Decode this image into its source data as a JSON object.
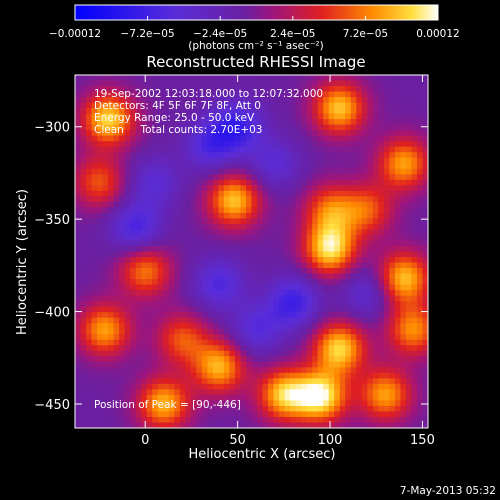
{
  "chart_data": {
    "type": "heatmap",
    "title": "Reconstructed RHESSI Image",
    "xlabel": "Heliocentric X (arcsec)",
    "ylabel": "Heliocentric Y (arcsec)",
    "xlim": [
      -38,
      153
    ],
    "ylim": [
      -463,
      -272
    ],
    "x_ticks": [
      0,
      50,
      100,
      150
    ],
    "x_tick_labels": [
      "0",
      "50",
      "100",
      "150"
    ],
    "y_ticks": [
      -300,
      -350,
      -400,
      -450
    ],
    "y_tick_labels": [
      "−300",
      "−350",
      "−400",
      "−450"
    ],
    "colorbar": {
      "range": [
        -0.00012,
        0.00012
      ],
      "tick_values": [
        -0.00012,
        -7.2e-05,
        -2.4e-05,
        2.4e-05,
        7.2e-05,
        0.00012
      ],
      "tick_labels": [
        "−0.00012",
        "−7.2e−05",
        "−2.4e−05",
        "2.4e−05",
        "7.2e−05",
        "0.00012"
      ],
      "units_line": "(photons cm⁻² s⁻¹ asec⁻²)",
      "colormap": "rhessi-blue-purple-red-yellow-white"
    },
    "annotations": [
      "19-Sep-2002 12:03:18.000 to 12:07:32.000",
      "Detectors: 4F 5F 6F 7F 8F, Att 0",
      "Energy Range: 25.0 - 50.0 keV",
      "Clean     Total counts: 2.70E+03"
    ],
    "peak_label": "Position of Peak = [90,-446]",
    "peak": {
      "x": 90,
      "y": -446
    },
    "bright_sources": [
      {
        "x": -20,
        "y": -296,
        "v": 0.9
      },
      {
        "x": 105,
        "y": -290,
        "v": 0.85
      },
      {
        "x": 140,
        "y": -320,
        "v": 0.75
      },
      {
        "x": 120,
        "y": -345,
        "v": 0.55
      },
      {
        "x": -25,
        "y": -330,
        "v": 0.55
      },
      {
        "x": 48,
        "y": -340,
        "v": 0.85
      },
      {
        "x": 100,
        "y": -345,
        "v": 0.6
      },
      {
        "x": 100,
        "y": -366,
        "v": 0.95
      },
      {
        "x": 0,
        "y": -378,
        "v": 0.65
      },
      {
        "x": 140,
        "y": -382,
        "v": 0.85
      },
      {
        "x": 145,
        "y": -410,
        "v": 0.7
      },
      {
        "x": 20,
        "y": -415,
        "v": 0.55
      },
      {
        "x": -22,
        "y": -410,
        "v": 0.75
      },
      {
        "x": 40,
        "y": -430,
        "v": 0.8
      },
      {
        "x": 10,
        "y": -450,
        "v": 0.8
      },
      {
        "x": 75,
        "y": -445,
        "v": 0.85
      },
      {
        "x": 95,
        "y": -446,
        "v": 1.0
      },
      {
        "x": 105,
        "y": -420,
        "v": 0.9
      },
      {
        "x": 130,
        "y": -445,
        "v": 0.75
      }
    ],
    "dark_sources": [
      {
        "x": 50,
        "y": -300,
        "v": -0.55
      },
      {
        "x": 35,
        "y": -310,
        "v": -0.45
      },
      {
        "x": 70,
        "y": -320,
        "v": -0.35
      },
      {
        "x": -5,
        "y": -355,
        "v": -0.5
      },
      {
        "x": 5,
        "y": -330,
        "v": -0.35
      },
      {
        "x": 80,
        "y": -395,
        "v": -0.55
      },
      {
        "x": 40,
        "y": -385,
        "v": -0.45
      },
      {
        "x": 120,
        "y": -390,
        "v": -0.35
      },
      {
        "x": 60,
        "y": -410,
        "v": -0.4
      }
    ]
  },
  "footer_date": "7-May-2013 05:32"
}
